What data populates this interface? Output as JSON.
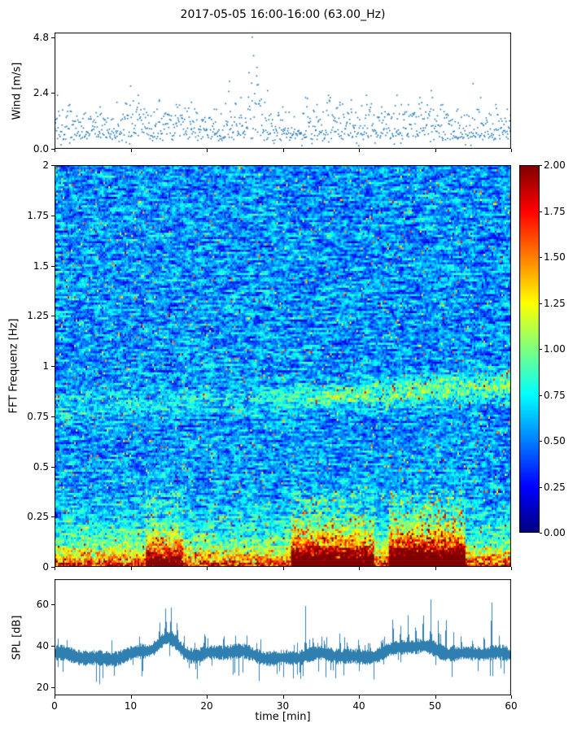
{
  "figure": {
    "title": "2017-05-05 16:00-16:00 (63.00_Hz)",
    "x_axis": {
      "label": "time [min]",
      "tick_values": [
        0,
        10,
        20,
        30,
        40,
        50,
        60
      ],
      "tick_labels": [
        "0",
        "10",
        "20",
        "30",
        "40",
        "50",
        "60"
      ]
    },
    "background": "#ffffff"
  },
  "chart_data": [
    {
      "type": "scatter",
      "name": "wind-speed",
      "ylabel": "Wind [m/s]",
      "xlim": [
        0,
        60
      ],
      "ylim": [
        0,
        5
      ],
      "y_tick_values": [
        0.0,
        2.4,
        4.8
      ],
      "y_tick_labels": [
        "0.0",
        "2.4",
        "4.8"
      ],
      "marker_color": "#1f77b4",
      "n_points": 900,
      "base_level": 0.5,
      "typical_max": 1.6,
      "peaks_t_v": [
        [
          0.4,
          2.3
        ],
        [
          2,
          1.9
        ],
        [
          6,
          1.8
        ],
        [
          8.2,
          2.0
        ],
        [
          10,
          2.7
        ],
        [
          11,
          2.3
        ],
        [
          13.8,
          2.1
        ],
        [
          16,
          1.9
        ],
        [
          18,
          2.0
        ],
        [
          21,
          1.7
        ],
        [
          23,
          2.9
        ],
        [
          24.5,
          2.2
        ],
        [
          26,
          4.8
        ],
        [
          26.6,
          3.5
        ],
        [
          28,
          2.5
        ],
        [
          30,
          1.8
        ],
        [
          33,
          2.2
        ],
        [
          34.5,
          1.9
        ],
        [
          36,
          2.3
        ],
        [
          37.5,
          2.0
        ],
        [
          39,
          2.1
        ],
        [
          41,
          2.3
        ],
        [
          43,
          1.8
        ],
        [
          45,
          2.3
        ],
        [
          46.5,
          1.9
        ],
        [
          48,
          2.2
        ],
        [
          49.5,
          2.5
        ],
        [
          51,
          1.9
        ],
        [
          53,
          1.7
        ],
        [
          55,
          2.8
        ],
        [
          56,
          2.2
        ],
        [
          58,
          1.9
        ],
        [
          59.5,
          1.7
        ]
      ]
    },
    {
      "type": "heatmap",
      "name": "fft-spectrogram",
      "ylabel": "FFT Frequenz [Hz]",
      "xlim": [
        0,
        60
      ],
      "ylim": [
        0,
        2
      ],
      "y_tick_values": [
        0,
        0.25,
        0.5,
        0.75,
        1,
        1.25,
        1.5,
        1.75,
        2
      ],
      "y_tick_labels": [
        "0",
        "0.25",
        "0.5",
        "0.75",
        "1",
        "1.25",
        "1.5",
        "1.75",
        "2"
      ],
      "colormap": "jet",
      "vmin": 0,
      "vmax": 2,
      "colorbar": {
        "tick_values": [
          0,
          0.25,
          0.5,
          0.75,
          1,
          1.25,
          1.5,
          1.75,
          2
        ],
        "tick_labels": [
          "0.00",
          "0.25",
          "0.50",
          "0.75",
          "1.00",
          "1.25",
          "1.50",
          "1.75",
          "2.00"
        ]
      },
      "low_freq": {
        "base_amp": 1.3,
        "decay_hz": 0.11
      },
      "events": [
        [
          12,
          17,
          0.9
        ],
        [
          31,
          42,
          1.3
        ],
        [
          44,
          54,
          1.7
        ]
      ],
      "band": {
        "center_hz": 0.78,
        "drift_hz_per_min": 0.002,
        "width_hz": 0.045,
        "amp": 0.5
      }
    },
    {
      "type": "line",
      "name": "spl",
      "ylabel": "SPL [dB]",
      "xlim": [
        0,
        60
      ],
      "ylim": [
        16,
        72
      ],
      "y_tick_values": [
        20,
        40,
        60
      ],
      "y_tick_labels": [
        "20",
        "40",
        "60"
      ],
      "line_color": "#2f7fb0",
      "baseline_db": 35.5,
      "noise_db": 2.4,
      "spikes_t_db": [
        [
          13.8,
          13
        ],
        [
          14.6,
          17
        ],
        [
          15.3,
          19
        ],
        [
          16.1,
          13
        ],
        [
          17,
          9
        ],
        [
          25.3,
          7
        ],
        [
          30.5,
          6
        ],
        [
          33,
          26
        ],
        [
          34,
          10
        ],
        [
          35.5,
          8
        ],
        [
          37.5,
          12
        ],
        [
          38.5,
          9
        ],
        [
          40,
          10
        ],
        [
          41.5,
          8
        ],
        [
          43,
          9
        ],
        [
          44.5,
          16
        ],
        [
          45.5,
          12
        ],
        [
          46.5,
          20
        ],
        [
          47.5,
          14
        ],
        [
          48.5,
          22
        ],
        [
          49.5,
          27
        ],
        [
          50.5,
          18
        ],
        [
          51.5,
          24
        ],
        [
          52.5,
          14
        ],
        [
          53.5,
          10
        ],
        [
          55,
          9
        ],
        [
          56.5,
          12
        ],
        [
          57.5,
          30
        ],
        [
          58.5,
          10
        ]
      ]
    }
  ]
}
